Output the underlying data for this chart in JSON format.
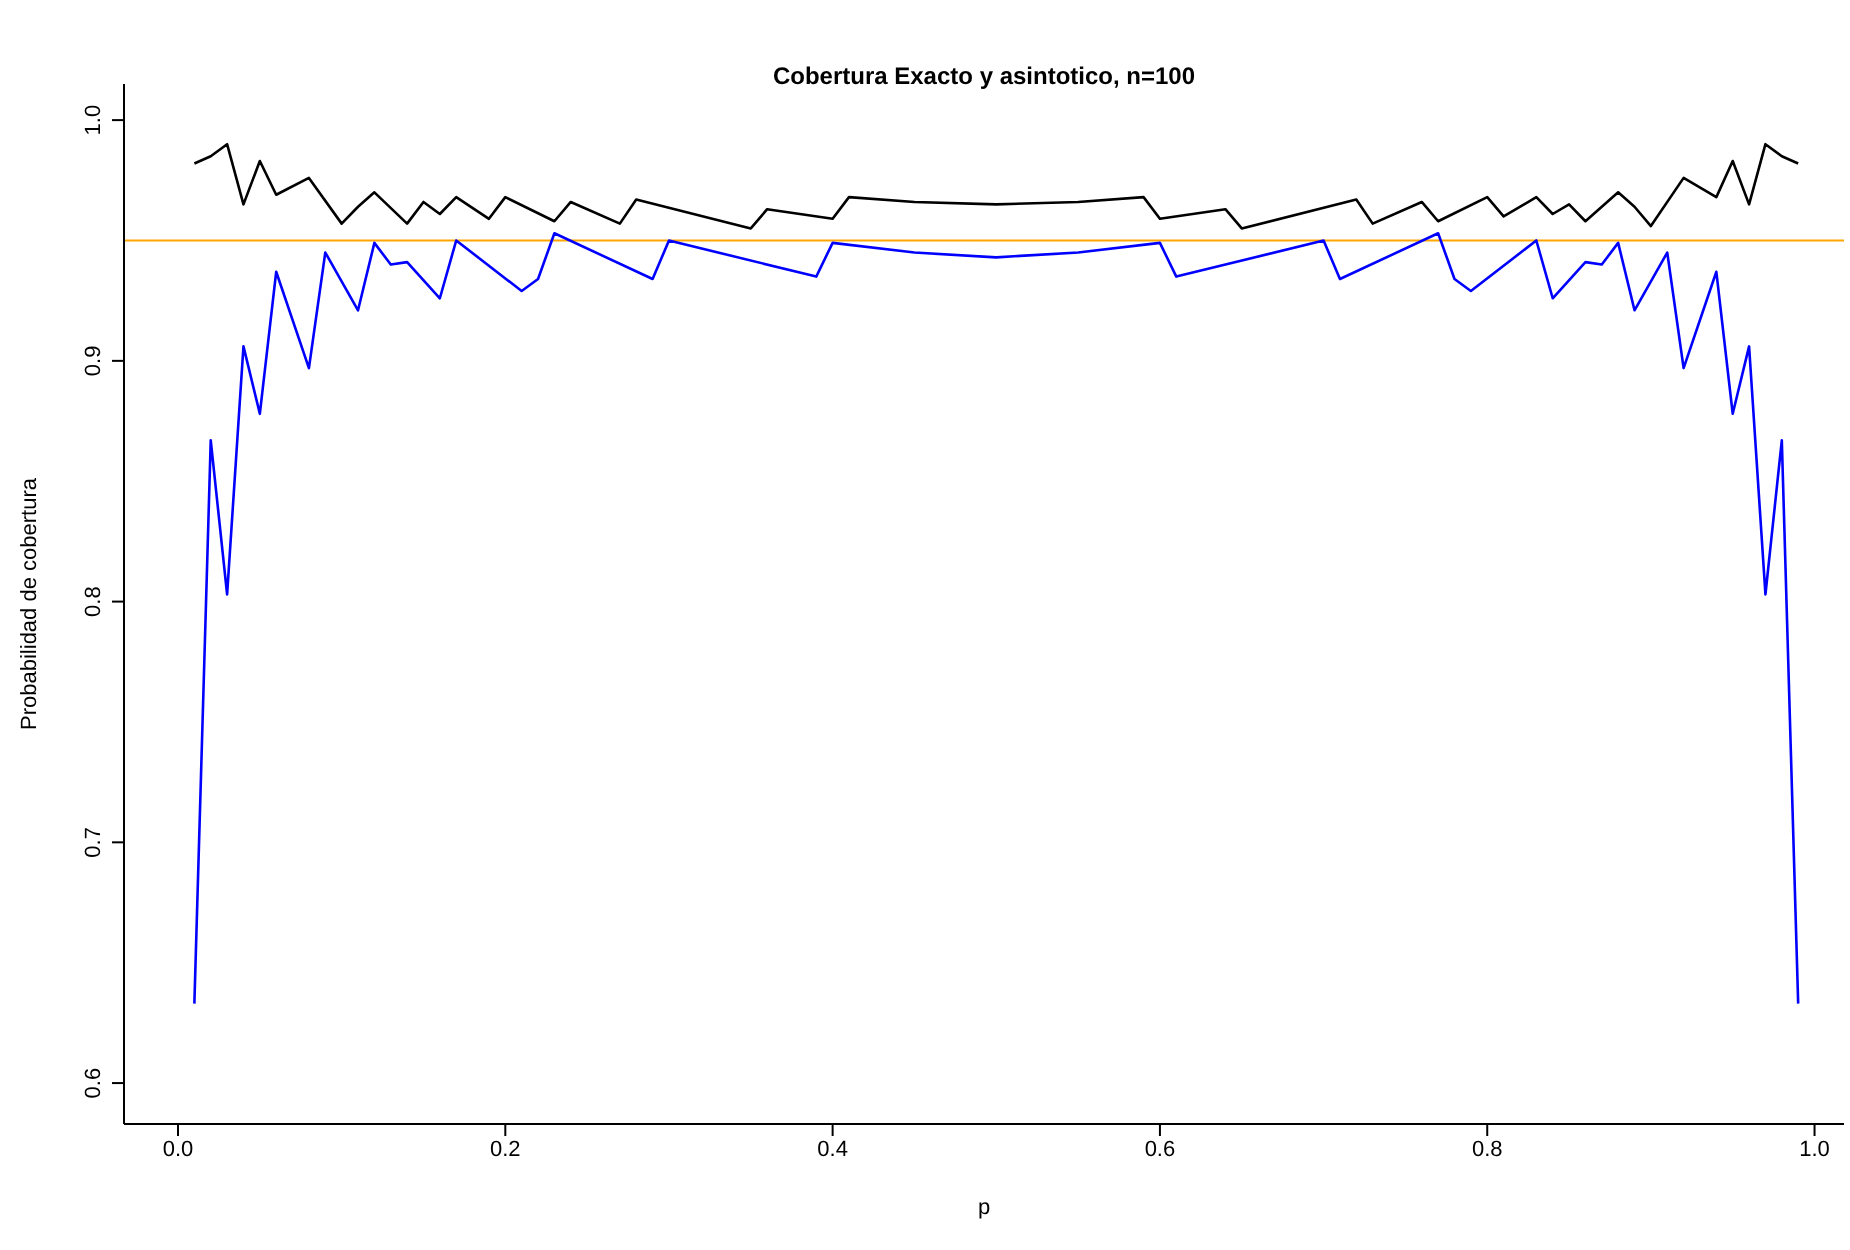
{
  "chart_data": {
    "type": "line",
    "title": "Cobertura Exacto y asintotico, n=100",
    "xlabel": "p",
    "ylabel": "Probabilidad de cobertura",
    "xlim": [
      -0.033,
      1.018
    ],
    "ylim": [
      0.583,
      1.015
    ],
    "xticks": [
      {
        "value": 0,
        "label": "0.0"
      },
      {
        "value": 0.2,
        "label": "0.2"
      },
      {
        "value": 0.4,
        "label": "0.4"
      },
      {
        "value": 0.6,
        "label": "0.6"
      },
      {
        "value": 0.8,
        "label": "0.8"
      },
      {
        "value": 1,
        "label": "1.0"
      }
    ],
    "yticks": [
      {
        "value": 0.6,
        "label": "0.6"
      },
      {
        "value": 0.7,
        "label": "0.7"
      },
      {
        "value": 0.8,
        "label": "0.8"
      },
      {
        "value": 0.9,
        "label": "0.9"
      },
      {
        "value": 1,
        "label": "1.0"
      }
    ],
    "grid": false,
    "legend": false,
    "marker": "none",
    "line_style": "solid",
    "ref_lines": [
      {
        "axis": "y",
        "value": 0.95,
        "color": "#ffa500"
      }
    ],
    "series": [
      {
        "color": "#000000",
        "x": [
          0.01,
          0.02,
          0.03,
          0.04,
          0.05,
          0.06,
          0.08,
          0.1,
          0.11,
          0.12,
          0.14,
          0.15,
          0.16,
          0.17,
          0.19,
          0.2,
          0.23,
          0.24,
          0.27,
          0.28,
          0.35,
          0.36,
          0.4,
          0.41,
          0.45,
          0.5,
          0.55,
          0.59,
          0.6,
          0.64,
          0.65,
          0.72,
          0.73,
          0.76,
          0.77,
          0.8,
          0.81,
          0.83,
          0.84,
          0.85,
          0.86,
          0.88,
          0.89,
          0.9,
          0.92,
          0.94,
          0.95,
          0.96,
          0.97,
          0.98,
          0.99
        ],
        "values": [
          0.982,
          0.985,
          0.99,
          0.965,
          0.983,
          0.969,
          0.976,
          0.957,
          0.964,
          0.97,
          0.957,
          0.966,
          0.961,
          0.968,
          0.959,
          0.968,
          0.958,
          0.966,
          0.957,
          0.967,
          0.955,
          0.963,
          0.959,
          0.968,
          0.966,
          0.965,
          0.966,
          0.968,
          0.959,
          0.963,
          0.955,
          0.967,
          0.957,
          0.966,
          0.958,
          0.968,
          0.96,
          0.968,
          0.961,
          0.965,
          0.958,
          0.97,
          0.964,
          0.956,
          0.976,
          0.968,
          0.983,
          0.965,
          0.99,
          0.985,
          0.982
        ]
      },
      {
        "color": "#0000ff",
        "x": [
          0.01,
          0.02,
          0.03,
          0.04,
          0.05,
          0.06,
          0.08,
          0.09,
          0.11,
          0.12,
          0.13,
          0.14,
          0.16,
          0.17,
          0.21,
          0.22,
          0.23,
          0.29,
          0.3,
          0.39,
          0.4,
          0.45,
          0.5,
          0.55,
          0.6,
          0.61,
          0.7,
          0.71,
          0.77,
          0.78,
          0.79,
          0.83,
          0.84,
          0.86,
          0.87,
          0.88,
          0.89,
          0.91,
          0.92,
          0.94,
          0.95,
          0.96,
          0.97,
          0.98,
          0.99
        ],
        "values": [
          0.633,
          0.867,
          0.803,
          0.906,
          0.878,
          0.937,
          0.897,
          0.945,
          0.921,
          0.949,
          0.94,
          0.941,
          0.926,
          0.95,
          0.929,
          0.934,
          0.953,
          0.934,
          0.95,
          0.935,
          0.949,
          0.945,
          0.943,
          0.945,
          0.949,
          0.935,
          0.95,
          0.934,
          0.953,
          0.934,
          0.929,
          0.95,
          0.926,
          0.941,
          0.94,
          0.949,
          0.921,
          0.945,
          0.897,
          0.937,
          0.878,
          0.906,
          0.803,
          0.867,
          0.633
        ]
      }
    ]
  }
}
